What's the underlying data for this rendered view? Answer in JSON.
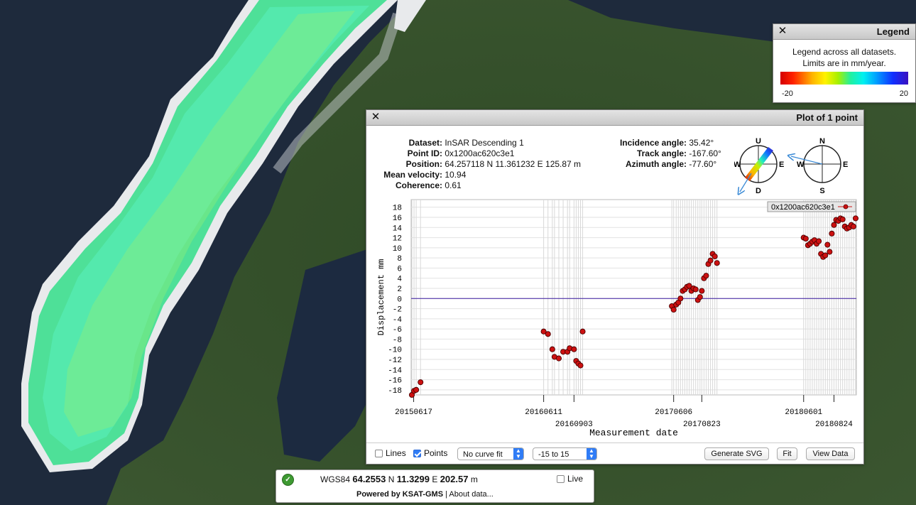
{
  "legend": {
    "title": "Legend",
    "text1": "Legend across all datasets.",
    "text2": "Limits are in mm/year.",
    "min_label": "-20",
    "max_label": "20"
  },
  "plot_window": {
    "title": "Plot of 1 point",
    "info": [
      {
        "label": "Dataset:",
        "value": "InSAR Descending 1"
      },
      {
        "label": "Point ID:",
        "value": "0x1200ac620c3e1"
      },
      {
        "label": "Position:",
        "value": "64.257118 N 11.361232 E 125.87 m"
      },
      {
        "label": "Mean velocity:",
        "value": "10.94"
      },
      {
        "label": "Coherence:",
        "value": "0.61"
      }
    ],
    "geometry": [
      {
        "label": "Incidence angle:",
        "value": "35.42°"
      },
      {
        "label": "Track angle:",
        "value": "-167.60°"
      },
      {
        "label": "Azimuth angle:",
        "value": "-77.60°"
      }
    ],
    "compass_labels": {
      "up": "U",
      "down": "D",
      "west": "W",
      "east": "E",
      "north": "N",
      "south": "S"
    },
    "controls": {
      "lines_label": "Lines",
      "lines_checked": false,
      "points_label": "Points",
      "points_checked": true,
      "curve_fit": "No curve fit",
      "range": "-15 to 15",
      "generate_svg": "Generate SVG",
      "fit": "Fit",
      "view_data": "View Data"
    }
  },
  "chart_data": {
    "type": "scatter",
    "xlabel": "Measurement date",
    "ylabel": "Displacement mm",
    "ylim": [
      -19,
      19.5
    ],
    "yticks": [
      -18,
      -16,
      -14,
      -12,
      -10,
      -8,
      -6,
      -4,
      -2,
      0,
      2,
      4,
      6,
      8,
      10,
      12,
      14,
      16,
      18
    ],
    "xlim": [
      "2015-06-10",
      "2018-10-25"
    ],
    "xticks": [
      "2015-06-17",
      "2016-06-11",
      "2016-09-03",
      "2017-06-06",
      "2017-08-23",
      "2018-06-01",
      "2018-08-24"
    ],
    "xtick_labels": [
      "20150617",
      "20160611",
      "20160903",
      "20170606",
      "20170823",
      "20180601",
      "20180824"
    ],
    "zero_line": 0,
    "grid": true,
    "legend_position": "top-right",
    "series": [
      {
        "name": "0x1200ac620c3e1",
        "color": "#cc1111",
        "points": [
          [
            "2015-06-12",
            -19.0
          ],
          [
            "2015-06-18",
            -18.2
          ],
          [
            "2015-06-24",
            -18.0
          ],
          [
            "2015-07-06",
            -16.5
          ],
          [
            "2016-06-11",
            -6.5
          ],
          [
            "2016-06-23",
            -7.0
          ],
          [
            "2016-07-05",
            -10.0
          ],
          [
            "2016-07-11",
            -11.5
          ],
          [
            "2016-07-23",
            -11.8
          ],
          [
            "2016-08-04",
            -10.5
          ],
          [
            "2016-08-16",
            -10.5
          ],
          [
            "2016-08-22",
            -9.8
          ],
          [
            "2016-09-03",
            -10.0
          ],
          [
            "2016-09-09",
            -12.3
          ],
          [
            "2016-09-15",
            -12.8
          ],
          [
            "2016-09-21",
            -13.2
          ],
          [
            "2016-09-27",
            -6.5
          ],
          [
            "2017-06-01",
            -1.5
          ],
          [
            "2017-06-06",
            -2.2
          ],
          [
            "2017-06-13",
            -1.2
          ],
          [
            "2017-06-19",
            -0.8
          ],
          [
            "2017-06-25",
            0.0
          ],
          [
            "2017-07-01",
            1.5
          ],
          [
            "2017-07-07",
            1.8
          ],
          [
            "2017-07-13",
            2.3
          ],
          [
            "2017-07-19",
            2.5
          ],
          [
            "2017-07-25",
            1.5
          ],
          [
            "2017-07-31",
            2.0
          ],
          [
            "2017-08-06",
            1.8
          ],
          [
            "2017-08-12",
            -0.3
          ],
          [
            "2017-08-18",
            0.3
          ],
          [
            "2017-08-23",
            1.5
          ],
          [
            "2017-08-29",
            4.0
          ],
          [
            "2017-09-04",
            4.5
          ],
          [
            "2017-09-10",
            6.8
          ],
          [
            "2017-09-16",
            7.5
          ],
          [
            "2017-09-22",
            8.8
          ],
          [
            "2017-09-28",
            8.3
          ],
          [
            "2017-10-04",
            7.0
          ],
          [
            "2018-06-01",
            12.0
          ],
          [
            "2018-06-07",
            11.8
          ],
          [
            "2018-06-13",
            10.5
          ],
          [
            "2018-06-19",
            10.8
          ],
          [
            "2018-06-25",
            11.2
          ],
          [
            "2018-07-01",
            11.5
          ],
          [
            "2018-07-07",
            10.8
          ],
          [
            "2018-07-13",
            11.3
          ],
          [
            "2018-07-19",
            8.8
          ],
          [
            "2018-07-25",
            8.2
          ],
          [
            "2018-07-31",
            8.5
          ],
          [
            "2018-08-06",
            10.6
          ],
          [
            "2018-08-12",
            9.2
          ],
          [
            "2018-08-18",
            12.8
          ],
          [
            "2018-08-24",
            14.5
          ],
          [
            "2018-08-30",
            15.5
          ],
          [
            "2018-09-05",
            15.3
          ],
          [
            "2018-09-11",
            15.8
          ],
          [
            "2018-09-17",
            15.6
          ],
          [
            "2018-09-23",
            14.2
          ],
          [
            "2018-09-29",
            13.8
          ],
          [
            "2018-10-05",
            14.0
          ],
          [
            "2018-10-11",
            14.5
          ],
          [
            "2018-10-17",
            14.2
          ],
          [
            "2018-10-23",
            15.8
          ]
        ]
      }
    ]
  },
  "status_bar": {
    "datum": "WGS84",
    "lat": "64.2553",
    "lat_hemi": "N",
    "lon": "11.3299",
    "lon_hemi": "E",
    "alt": "202.57",
    "alt_unit": "m",
    "live_label": "Live",
    "live_checked": false,
    "powered_by": "Powered by KSAT-GMS",
    "about": "About data..."
  },
  "colors": {
    "accent": "#2f7cf6",
    "point_fill": "#cc1111",
    "zero_line": "#3a1aa0",
    "map_ocean": "#1e2a3c",
    "map_land": "#36502c"
  }
}
